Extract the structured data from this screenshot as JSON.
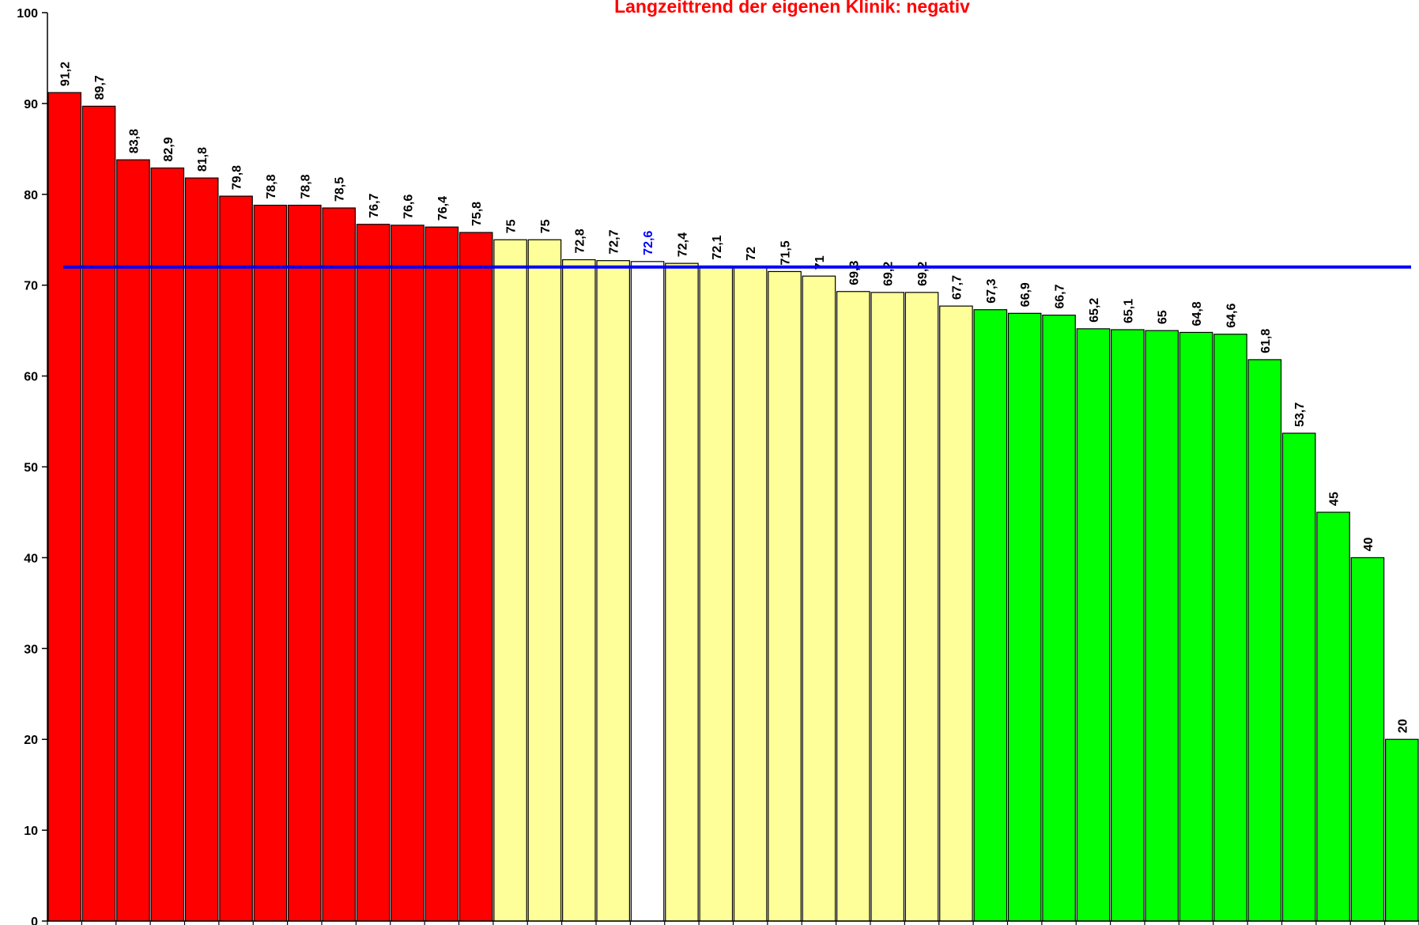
{
  "chart_data": {
    "type": "bar",
    "title": "Langzeittrend der eigenen Klinik: negativ",
    "title_color": "#ff0000",
    "values": [
      91.2,
      89.7,
      83.8,
      82.9,
      81.8,
      79.8,
      78.8,
      78.8,
      78.5,
      76.7,
      76.6,
      76.4,
      75.8,
      75,
      75,
      72.8,
      72.7,
      72.6,
      72.4,
      72.1,
      72,
      71.5,
      71,
      69.3,
      69.2,
      69.2,
      67.7,
      67.3,
      66.9,
      66.7,
      65.2,
      65.1,
      65,
      64.8,
      64.6,
      61.8,
      53.7,
      45,
      40,
      20
    ],
    "value_labels": [
      "91,2",
      "89,7",
      "83,8",
      "82,9",
      "81,8",
      "79,8",
      "78,8",
      "78,8",
      "78,5",
      "76,7",
      "76,6",
      "76,4",
      "75,8",
      "75",
      "75",
      "72,8",
      "72,7",
      "72,6",
      "72,4",
      "72,1",
      "72",
      "71,5",
      "71",
      "69,3",
      "69,2",
      "69,2",
      "67,7",
      "67,3",
      "66,9",
      "66,7",
      "65,2",
      "65,1",
      "65",
      "64,8",
      "64,6",
      "61,8",
      "53,7",
      "45",
      "40",
      "20"
    ],
    "colors": [
      "#ff0000",
      "#ff0000",
      "#ff0000",
      "#ff0000",
      "#ff0000",
      "#ff0000",
      "#ff0000",
      "#ff0000",
      "#ff0000",
      "#ff0000",
      "#ff0000",
      "#ff0000",
      "#ff0000",
      "#ffff99",
      "#ffff99",
      "#ffff99",
      "#ffff99",
      "#ffffff",
      "#ffff99",
      "#ffff99",
      "#ffff99",
      "#ffff99",
      "#ffff99",
      "#ffff99",
      "#ffff99",
      "#ffff99",
      "#ffff99",
      "#00ff00",
      "#00ff00",
      "#00ff00",
      "#00ff00",
      "#00ff00",
      "#00ff00",
      "#00ff00",
      "#00ff00",
      "#00ff00",
      "#00ff00",
      "#00ff00",
      "#00ff00",
      "#00ff00"
    ],
    "value_label_colors": [
      "#000000",
      "#000000",
      "#000000",
      "#000000",
      "#000000",
      "#000000",
      "#000000",
      "#000000",
      "#000000",
      "#000000",
      "#000000",
      "#000000",
      "#000000",
      "#000000",
      "#000000",
      "#000000",
      "#000000",
      "#0000ff",
      "#000000",
      "#000000",
      "#000000",
      "#000000",
      "#000000",
      "#000000",
      "#000000",
      "#000000",
      "#000000",
      "#000000",
      "#000000",
      "#000000",
      "#000000",
      "#000000",
      "#000000",
      "#000000",
      "#000000",
      "#000000",
      "#000000",
      "#000000",
      "#000000",
      "#000000"
    ],
    "reference_line": {
      "value": 72,
      "color": "#0000ff"
    },
    "ylim": [
      0,
      100
    ],
    "yticks": [
      0,
      10,
      20,
      30,
      40,
      50,
      60,
      70,
      80,
      90,
      100
    ],
    "grid": false
  }
}
